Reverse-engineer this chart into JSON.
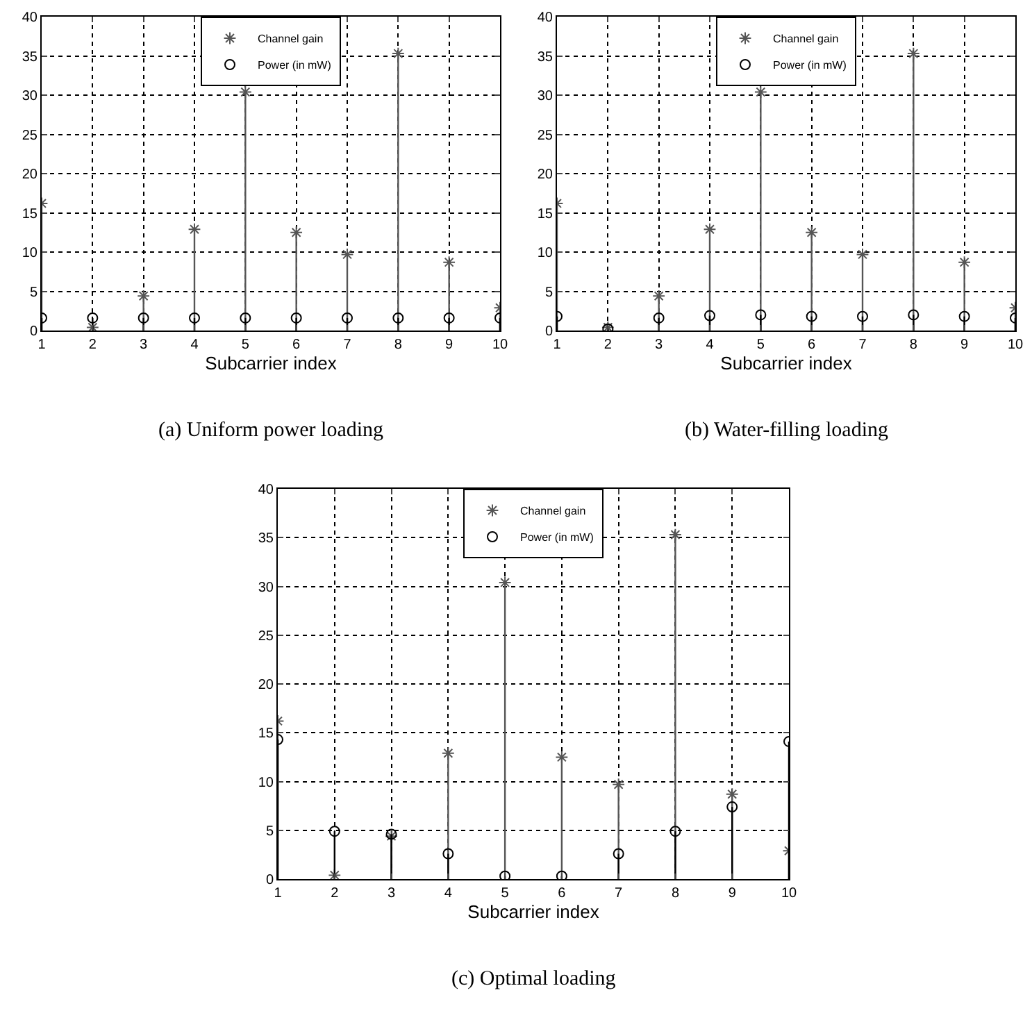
{
  "chart_data": [
    {
      "type": "lollipop",
      "xlabel": "Subcarrier index",
      "annotations": [
        "(a) Uniform power loading"
      ],
      "x": [
        1,
        2,
        3,
        4,
        5,
        6,
        7,
        8,
        9,
        10
      ],
      "xlim": [
        1,
        10
      ],
      "xticks": [
        1,
        2,
        3,
        4,
        5,
        6,
        7,
        8,
        9,
        10
      ],
      "ylim": [
        0,
        40
      ],
      "yticks": [
        0,
        5,
        10,
        15,
        20,
        25,
        30,
        35,
        40
      ],
      "grid": true,
      "legend": "top",
      "line_style": "dotted",
      "series": [
        {
          "name": "Channel gain",
          "color": "#555555",
          "marker": "cross",
          "values": [
            16.2,
            0.4,
            4.4,
            12.9,
            30.4,
            12.5,
            9.7,
            35.3,
            8.7,
            2.9
          ]
        },
        {
          "name": "Power (in mW)",
          "color": "#000000",
          "marker": "circle",
          "values": [
            1.6,
            1.6,
            1.6,
            1.6,
            1.6,
            1.6,
            1.6,
            1.6,
            1.6,
            1.6
          ]
        }
      ]
    },
    {
      "type": "lollipop",
      "xlabel": "Subcarrier index",
      "annotations": [
        "(b) Water-filling loading"
      ],
      "x": [
        1,
        2,
        3,
        4,
        5,
        6,
        7,
        8,
        9,
        10
      ],
      "xlim": [
        1,
        10
      ],
      "xticks": [
        1,
        2,
        3,
        4,
        5,
        6,
        7,
        8,
        9,
        10
      ],
      "ylim": [
        0,
        40
      ],
      "yticks": [
        0,
        5,
        10,
        15,
        20,
        25,
        30,
        35,
        40
      ],
      "grid": true,
      "legend": "top",
      "line_style": "dotted",
      "series": [
        {
          "name": "Channel gain",
          "color": "#555555",
          "marker": "cross",
          "values": [
            16.2,
            0.4,
            4.4,
            12.9,
            30.4,
            12.5,
            9.7,
            35.3,
            8.7,
            2.9
          ]
        },
        {
          "name": "Power (in mW)",
          "color": "#000000",
          "marker": "circle",
          "values": [
            1.8,
            0.2,
            1.6,
            1.9,
            2.0,
            1.8,
            1.8,
            2.0,
            1.8,
            1.6
          ]
        }
      ]
    },
    {
      "type": "lollipop",
      "xlabel": "Subcarrier index",
      "annotations": [
        "(c) Optimal loading"
      ],
      "x": [
        1,
        2,
        3,
        4,
        5,
        6,
        7,
        8,
        9,
        10
      ],
      "xlim": [
        1,
        10
      ],
      "xticks": [
        1,
        2,
        3,
        4,
        5,
        6,
        7,
        8,
        9,
        10
      ],
      "ylim": [
        0,
        40
      ],
      "yticks": [
        0,
        5,
        10,
        15,
        20,
        25,
        30,
        35,
        40
      ],
      "grid": true,
      "legend": "top",
      "line_style": "dotted",
      "series": [
        {
          "name": "Channel gain",
          "color": "#555555",
          "marker": "cross",
          "values": [
            16.2,
            0.4,
            4.4,
            12.9,
            30.4,
            12.5,
            9.7,
            35.3,
            8.7,
            2.9
          ]
        },
        {
          "name": "Power (in mW)",
          "color": "#000000",
          "marker": "circle",
          "values": [
            14.3,
            4.9,
            4.6,
            2.6,
            0.3,
            0.3,
            2.6,
            4.9,
            7.4,
            14.1
          ]
        }
      ]
    }
  ]
}
